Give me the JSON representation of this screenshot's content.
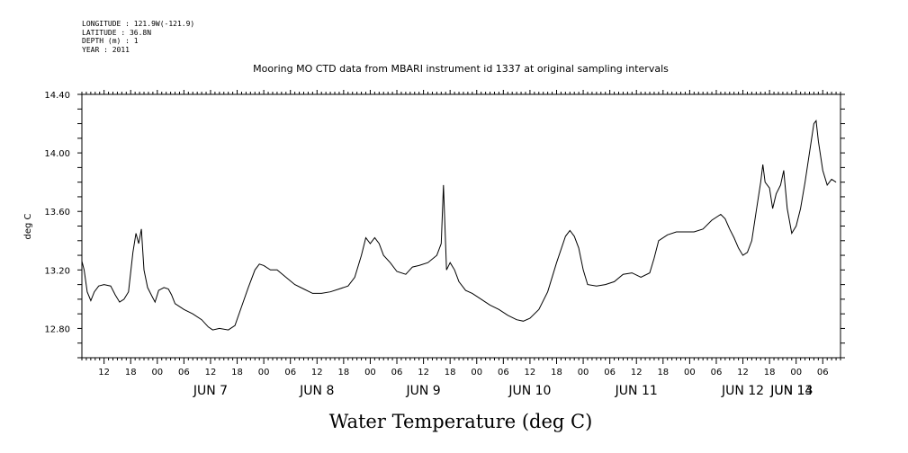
{
  "header": {
    "longitude": "LONGITUDE : 121.9W(-121.9)",
    "latitude": "LATITUDE : 36.8N",
    "depth": "DEPTH (m) : 1",
    "year": "YEAR : 2011"
  },
  "chart_data": {
    "type": "line",
    "title": "Mooring MO CTD data from MBARI instrument id 1337 at original sampling intervals",
    "ylabel": "deg C",
    "xlabel": "Water Temperature (deg C)",
    "ylim": [
      12.6,
      14.4
    ],
    "yticks": [
      "12.80",
      "13.20",
      "13.60",
      "14.00",
      "14.40"
    ],
    "x_unit": "hours since 2011-06-06 00:00",
    "xlim": [
      7,
      178
    ],
    "hour_ticks": [
      "12",
      "18",
      "00",
      "06",
      "12",
      "18",
      "00",
      "06",
      "12",
      "18",
      "00",
      "06",
      "12",
      "18",
      "00",
      "06",
      "12",
      "18",
      "00",
      "06",
      "12",
      "18",
      "00",
      "06",
      "12",
      "18",
      "00",
      "06"
    ],
    "day_labels": [
      "JUN 7",
      "JUN 8",
      "JUN 9",
      "JUN 10",
      "JUN 11",
      "JUN 12",
      "JUN 13",
      "JUN 14"
    ],
    "series": [
      {
        "values": [
          [
            7.0,
            13.26
          ],
          [
            7.5,
            13.2
          ],
          [
            8.2,
            13.05
          ],
          [
            9.0,
            12.99
          ],
          [
            9.8,
            13.05
          ],
          [
            10.8,
            13.09
          ],
          [
            12.0,
            13.1
          ],
          [
            13.5,
            13.09
          ],
          [
            14.5,
            13.03
          ],
          [
            15.5,
            12.98
          ],
          [
            16.5,
            13.0
          ],
          [
            17.5,
            13.05
          ],
          [
            18.5,
            13.32
          ],
          [
            19.2,
            13.45
          ],
          [
            19.8,
            13.38
          ],
          [
            20.4,
            13.48
          ],
          [
            21.0,
            13.2
          ],
          [
            21.8,
            13.08
          ],
          [
            22.8,
            13.02
          ],
          [
            23.5,
            12.98
          ],
          [
            24.3,
            13.06
          ],
          [
            25.5,
            13.08
          ],
          [
            26.5,
            13.07
          ],
          [
            27.2,
            13.03
          ],
          [
            28.0,
            12.97
          ],
          [
            30.0,
            12.93
          ],
          [
            32.0,
            12.9
          ],
          [
            34.0,
            12.86
          ],
          [
            35.5,
            12.81
          ],
          [
            36.5,
            12.79
          ],
          [
            38.0,
            12.8
          ],
          [
            40.0,
            12.79
          ],
          [
            41.5,
            12.82
          ],
          [
            43.0,
            12.95
          ],
          [
            44.5,
            13.08
          ],
          [
            46.0,
            13.2
          ],
          [
            47.0,
            13.24
          ],
          [
            48.0,
            13.23
          ],
          [
            49.5,
            13.2
          ],
          [
            51.0,
            13.2
          ],
          [
            53.0,
            13.15
          ],
          [
            55.0,
            13.1
          ],
          [
            57.0,
            13.07
          ],
          [
            59.0,
            13.04
          ],
          [
            61.0,
            13.04
          ],
          [
            63.0,
            13.05
          ],
          [
            65.0,
            13.07
          ],
          [
            67.0,
            13.09
          ],
          [
            68.5,
            13.15
          ],
          [
            70.0,
            13.3
          ],
          [
            71.0,
            13.42
          ],
          [
            72.0,
            13.38
          ],
          [
            73.0,
            13.42
          ],
          [
            74.0,
            13.38
          ],
          [
            75.0,
            13.3
          ],
          [
            76.5,
            13.25
          ],
          [
            78.0,
            13.19
          ],
          [
            80.0,
            13.17
          ],
          [
            81.5,
            13.22
          ],
          [
            83.0,
            13.23
          ],
          [
            85.0,
            13.25
          ],
          [
            87.0,
            13.3
          ],
          [
            88.0,
            13.38
          ],
          [
            88.5,
            13.78
          ],
          [
            89.2,
            13.2
          ],
          [
            90.0,
            13.25
          ],
          [
            91.0,
            13.2
          ],
          [
            92.0,
            13.12
          ],
          [
            93.5,
            13.06
          ],
          [
            95.0,
            13.04
          ],
          [
            97.0,
            13.0
          ],
          [
            99.0,
            12.96
          ],
          [
            101.0,
            12.93
          ],
          [
            103.0,
            12.89
          ],
          [
            105.0,
            12.86
          ],
          [
            106.5,
            12.85
          ],
          [
            108.0,
            12.87
          ],
          [
            110.0,
            12.93
          ],
          [
            112.0,
            13.05
          ],
          [
            114.0,
            13.25
          ],
          [
            116.0,
            13.43
          ],
          [
            117.0,
            13.47
          ],
          [
            118.0,
            13.43
          ],
          [
            119.0,
            13.35
          ],
          [
            120.0,
            13.2
          ],
          [
            121.0,
            13.1
          ],
          [
            123.0,
            13.09
          ],
          [
            125.0,
            13.1
          ],
          [
            127.0,
            13.12
          ],
          [
            129.0,
            13.17
          ],
          [
            131.0,
            13.18
          ],
          [
            133.0,
            13.15
          ],
          [
            135.0,
            13.18
          ],
          [
            136.0,
            13.28
          ],
          [
            137.0,
            13.4
          ],
          [
            139.0,
            13.44
          ],
          [
            141.0,
            13.46
          ],
          [
            143.0,
            13.46
          ],
          [
            145.0,
            13.46
          ],
          [
            147.0,
            13.48
          ],
          [
            149.0,
            13.54
          ],
          [
            151.0,
            13.58
          ],
          [
            152.0,
            13.55
          ],
          [
            153.0,
            13.48
          ],
          [
            154.0,
            13.42
          ],
          [
            155.0,
            13.35
          ],
          [
            156.0,
            13.3
          ],
          [
            157.0,
            13.32
          ],
          [
            158.0,
            13.4
          ],
          [
            159.0,
            13.6
          ],
          [
            160.0,
            13.8
          ],
          [
            160.5,
            13.92
          ],
          [
            161.0,
            13.8
          ],
          [
            162.0,
            13.76
          ],
          [
            162.7,
            13.62
          ],
          [
            163.5,
            13.72
          ],
          [
            164.5,
            13.78
          ],
          [
            165.2,
            13.88
          ],
          [
            166.0,
            13.62
          ],
          [
            167.0,
            13.45
          ],
          [
            168.0,
            13.5
          ],
          [
            169.0,
            13.62
          ],
          [
            170.0,
            13.8
          ],
          [
            171.0,
            14.0
          ],
          [
            172.0,
            14.2
          ],
          [
            172.5,
            14.22
          ],
          [
            173.0,
            14.08
          ],
          [
            174.0,
            13.88
          ],
          [
            175.0,
            13.78
          ],
          [
            176.0,
            13.82
          ],
          [
            177.0,
            13.8
          ]
        ]
      }
    ],
    "colors": {
      "line": "#000000",
      "axis": "#000000",
      "background": "#ffffff"
    }
  }
}
